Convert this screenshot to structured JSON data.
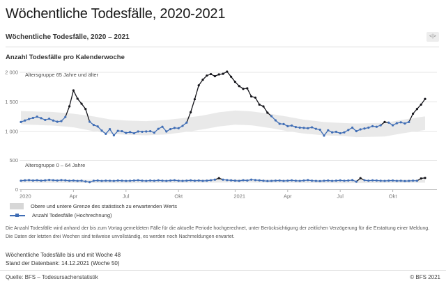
{
  "page": {
    "title": "Wöchentliche Todesfälle, 2020-2021"
  },
  "widget": {
    "header": {
      "title": "Wöchentliche Todesfälle, 2020 – 2021",
      "embed_icon_glyph": "<|>"
    },
    "subtitle": "Anzahl Todesfälle pro Kalenderwoche",
    "legend": [
      {
        "type": "band",
        "label": "Obere und untere Grenze des statistisch zu erwartenden Werts"
      },
      {
        "type": "line",
        "label": "Anzahl Todesfälle (Hochrechnung)"
      }
    ],
    "footnotes": [
      "Die Anzahl Todesfälle wird anhand der bis zum Vortag gemeldeten Fälle für die aktuelle Periode hochgerechnet, unter Berücksichtigung der zeitlichen Verzögerung für die Erstattung einer Meldung.",
      "Die Daten der letzten drei Wochen sind teilweise unvollständig, es werden noch Nachmeldungen erwartet."
    ],
    "status_lines": [
      "Wöchentliche Todesfälle bis und mit Woche 48",
      "Stand der Datenbank: 14.12.2021 (Woche 50)"
    ],
    "footer": {
      "source": "Quelle: BFS – Todesursachenstatistik",
      "copyright": "© BFS 2021"
    }
  },
  "colors": {
    "line_blue": "#3f6db5",
    "point_dark": "#15151b",
    "band_fill": "#e9e9e9",
    "band_legend": "#d7d7d7",
    "grid": "#e4e4e4",
    "axis_line": "#c6c6c6",
    "tick_text": "#767676",
    "annotation_text": "#4a4a4a"
  },
  "chart_data": [
    {
      "type": "line",
      "panel": "upper",
      "annotation": "Altersgruppe 65 Jahre und älter",
      "x_start": "2020-W01",
      "x_end": "2021-W48",
      "x_ticks": [
        {
          "label": "2020",
          "week_index": 0,
          "kind": "year"
        },
        {
          "label": "Apr",
          "week_index": 13,
          "kind": "month"
        },
        {
          "label": "Jul",
          "week_index": 26,
          "kind": "month"
        },
        {
          "label": "Okt",
          "week_index": 39,
          "kind": "month"
        },
        {
          "label": "2021",
          "week_index": 53,
          "kind": "year"
        },
        {
          "label": "Apr",
          "week_index": 66,
          "kind": "month"
        },
        {
          "label": "Jul",
          "week_index": 79,
          "kind": "month"
        },
        {
          "label": "Okt",
          "week_index": 92,
          "kind": "month"
        }
      ],
      "ylim": [
        870,
        2030
      ],
      "yticks": [
        {
          "value": 1000,
          "label": "1 000"
        },
        {
          "value": 1500,
          "label": "1 500"
        },
        {
          "value": 2000,
          "label": "2 000"
        }
      ],
      "series": [
        {
          "name": "Anzahl Todesfälle (Hochrechnung)",
          "values": [
            1160,
            1185,
            1210,
            1230,
            1250,
            1225,
            1195,
            1215,
            1185,
            1165,
            1175,
            1245,
            1425,
            1695,
            1555,
            1470,
            1380,
            1165,
            1110,
            1085,
            1015,
            960,
            1040,
            935,
            1010,
            1005,
            975,
            990,
            970,
            1000,
            995,
            1000,
            1005,
            980,
            1045,
            1080,
            1000,
            1040,
            1060,
            1055,
            1095,
            1150,
            1325,
            1545,
            1780,
            1875,
            1945,
            1970,
            1935,
            1965,
            1975,
            2012,
            1926,
            1839,
            1768,
            1721,
            1729,
            1592,
            1573,
            1455,
            1424,
            1318,
            1259,
            1188,
            1130,
            1125,
            1090,
            1100,
            1075,
            1065,
            1060,
            1055,
            1070,
            1045,
            1030,
            930,
            1020,
            985,
            995,
            970,
            985,
            1025,
            1065,
            1005,
            1035,
            1050,
            1065,
            1090,
            1080,
            1105,
            1160,
            1150,
            1105,
            1140,
            1155,
            1135,
            1160,
            1300,
            1380,
            1455,
            1550
          ]
        }
      ],
      "expected_band_anchors": [
        {
          "i": 0,
          "lo": 1120,
          "hi": 1345
        },
        {
          "i": 8,
          "lo": 1100,
          "hi": 1330
        },
        {
          "i": 13,
          "lo": 1070,
          "hi": 1300
        },
        {
          "i": 18,
          "lo": 1005,
          "hi": 1255
        },
        {
          "i": 22,
          "lo": 960,
          "hi": 1205
        },
        {
          "i": 26,
          "lo": 945,
          "hi": 1185
        },
        {
          "i": 31,
          "lo": 935,
          "hi": 1175
        },
        {
          "i": 36,
          "lo": 950,
          "hi": 1195
        },
        {
          "i": 40,
          "lo": 985,
          "hi": 1225
        },
        {
          "i": 45,
          "lo": 1035,
          "hi": 1270
        },
        {
          "i": 49,
          "lo": 1085,
          "hi": 1325
        },
        {
          "i": 53,
          "lo": 1115,
          "hi": 1355
        },
        {
          "i": 57,
          "lo": 1105,
          "hi": 1340
        },
        {
          "i": 62,
          "lo": 1055,
          "hi": 1295
        },
        {
          "i": 66,
          "lo": 1005,
          "hi": 1250
        },
        {
          "i": 70,
          "lo": 965,
          "hi": 1200
        },
        {
          "i": 75,
          "lo": 935,
          "hi": 1160
        },
        {
          "i": 79,
          "lo": 925,
          "hi": 1145
        },
        {
          "i": 83,
          "lo": 905,
          "hi": 1135
        },
        {
          "i": 90,
          "lo": 915,
          "hi": 1145
        },
        {
          "i": 95,
          "lo": 975,
          "hi": 1205
        },
        {
          "i": 100,
          "lo": 1025,
          "hi": 1255
        }
      ]
    },
    {
      "type": "line",
      "panel": "lower",
      "annotation": "Altersgruppe 0 – 64 Jahre",
      "x_start": "2020-W01",
      "x_end": "2021-W48",
      "ylim": [
        0,
        500
      ],
      "yticks": [
        {
          "value": 0,
          "label": "0"
        },
        {
          "value": 500,
          "label": "500"
        }
      ],
      "series": [
        {
          "name": "Anzahl Todesfälle (Hochrechnung)",
          "values": [
            150,
            158,
            162,
            155,
            160,
            152,
            158,
            165,
            160,
            155,
            162,
            158,
            150,
            155,
            148,
            152,
            138,
            128,
            150,
            155,
            148,
            152,
            150,
            148,
            155,
            152,
            148,
            150,
            155,
            160,
            152,
            148,
            155,
            150,
            158,
            152,
            148,
            155,
            160,
            150,
            148,
            152,
            158,
            150,
            155,
            148,
            152,
            160,
            170,
            195,
            170,
            162,
            158,
            152,
            148,
            160,
            155,
            170,
            162,
            158,
            150,
            145,
            148,
            152,
            155,
            148,
            152,
            158,
            150,
            148,
            155,
            162,
            152,
            148,
            145,
            150,
            155,
            148,
            152,
            158,
            150,
            155,
            162,
            135,
            195,
            160,
            152,
            158,
            155,
            150,
            148,
            152,
            155,
            148,
            150,
            145,
            148,
            152,
            150,
            190,
            200
          ]
        }
      ],
      "expected_band_anchors": [
        {
          "i": 0,
          "lo": 118,
          "hi": 175
        },
        {
          "i": 26,
          "lo": 110,
          "hi": 163
        },
        {
          "i": 49,
          "lo": 120,
          "hi": 176
        },
        {
          "i": 53,
          "lo": 122,
          "hi": 178
        },
        {
          "i": 79,
          "lo": 110,
          "hi": 163
        },
        {
          "i": 100,
          "lo": 118,
          "hi": 172
        }
      ]
    }
  ]
}
